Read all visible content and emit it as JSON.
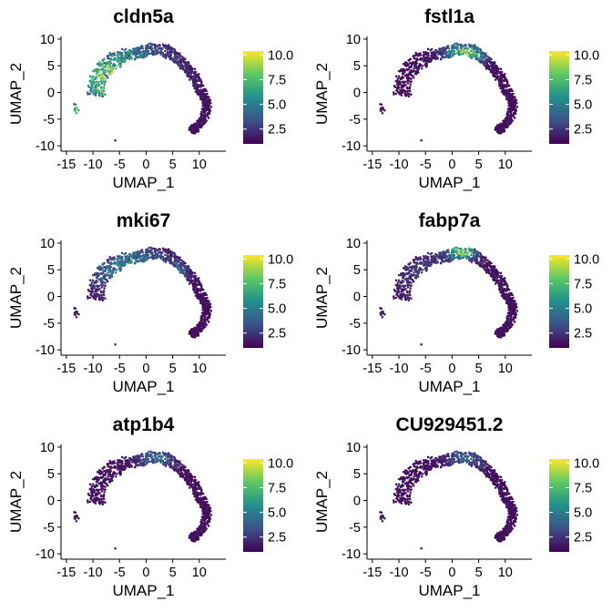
{
  "chart_data": {
    "type": "scatter",
    "layout": {
      "rows": 3,
      "cols": 2
    },
    "xlabel": "UMAP_1",
    "ylabel": "UMAP_2",
    "xlim": [
      -16,
      15
    ],
    "ylim": [
      -11,
      10.5
    ],
    "xticks": [
      -15,
      -10,
      -5,
      0,
      5,
      10
    ],
    "xtick_labels": [
      "-15",
      "-10",
      "-5",
      "0",
      "5",
      "10"
    ],
    "yticks": [
      -10,
      -5,
      0,
      5,
      10
    ],
    "ytick_labels": [
      "-10",
      "-5",
      "0",
      "5",
      "10"
    ],
    "colorbar": {
      "min": 1,
      "max": 10.4,
      "ticks": [
        10.0,
        7.5,
        5.0,
        2.5
      ],
      "tick_labels": [
        "10.0",
        "7.5",
        "5.0",
        "2.5"
      ],
      "colors": [
        "#440154",
        "#3b528b",
        "#21908c",
        "#5dc863",
        "#fde725"
      ]
    },
    "panels": [
      {
        "title": "cldn5a",
        "hotspots": [
          {
            "x": -6,
            "y": 3,
            "sx": 6.5,
            "sy": 4.5,
            "amp": 5.5
          },
          {
            "x": -7,
            "y": 0,
            "sx": 1.5,
            "sy": 2,
            "amp": 2
          },
          {
            "x": -13,
            "y": -3.2,
            "sx": 1,
            "sy": 1,
            "amp": 4
          }
        ]
      },
      {
        "title": "fstl1a",
        "hotspots": [
          {
            "x": 2,
            "y": 7.5,
            "sx": 2.5,
            "sy": 1.3,
            "amp": 4.5
          },
          {
            "x": 4,
            "y": 7,
            "sx": 2,
            "sy": 1,
            "amp": 2
          }
        ]
      },
      {
        "title": "mki67",
        "hotspots": [
          {
            "x": -3,
            "y": 5,
            "sx": 5,
            "sy": 3,
            "amp": 3.5
          },
          {
            "x": 6,
            "y": 4.5,
            "sx": 1.2,
            "sy": 1.2,
            "amp": 1.8
          }
        ]
      },
      {
        "title": "fabp7a",
        "hotspots": [
          {
            "x": 2,
            "y": 8.5,
            "sx": 1.8,
            "sy": 1,
            "amp": 6
          },
          {
            "x": -4,
            "y": 4,
            "sx": 5,
            "sy": 4,
            "amp": 1.2
          }
        ]
      },
      {
        "title": "atp1b4",
        "hotspots": [
          {
            "x": 2,
            "y": 8,
            "sx": 2.5,
            "sy": 1.5,
            "amp": 2.5
          }
        ]
      },
      {
        "title": "CU929451.2",
        "hotspots": [
          {
            "x": 2.5,
            "y": 8,
            "sx": 2.5,
            "sy": 1.5,
            "amp": 2.2
          }
        ]
      }
    ],
    "cloud_spine": [
      [
        -9.5,
        -0.5
      ],
      [
        -9,
        3
      ],
      [
        -7,
        5.5
      ],
      [
        -4,
        7
      ],
      [
        -1,
        7.5
      ],
      [
        2,
        8.3
      ],
      [
        4.5,
        7.5
      ],
      [
        7,
        5.5
      ],
      [
        9,
        3
      ],
      [
        10.5,
        0
      ],
      [
        11.5,
        -2
      ],
      [
        11,
        -4.5
      ],
      [
        9.5,
        -6.5
      ],
      [
        8.5,
        -7.2
      ]
    ],
    "outlier_cluster": {
      "x": -13,
      "y": -3.2
    },
    "outlier_point": {
      "x": -5.8,
      "y": -9
    }
  }
}
